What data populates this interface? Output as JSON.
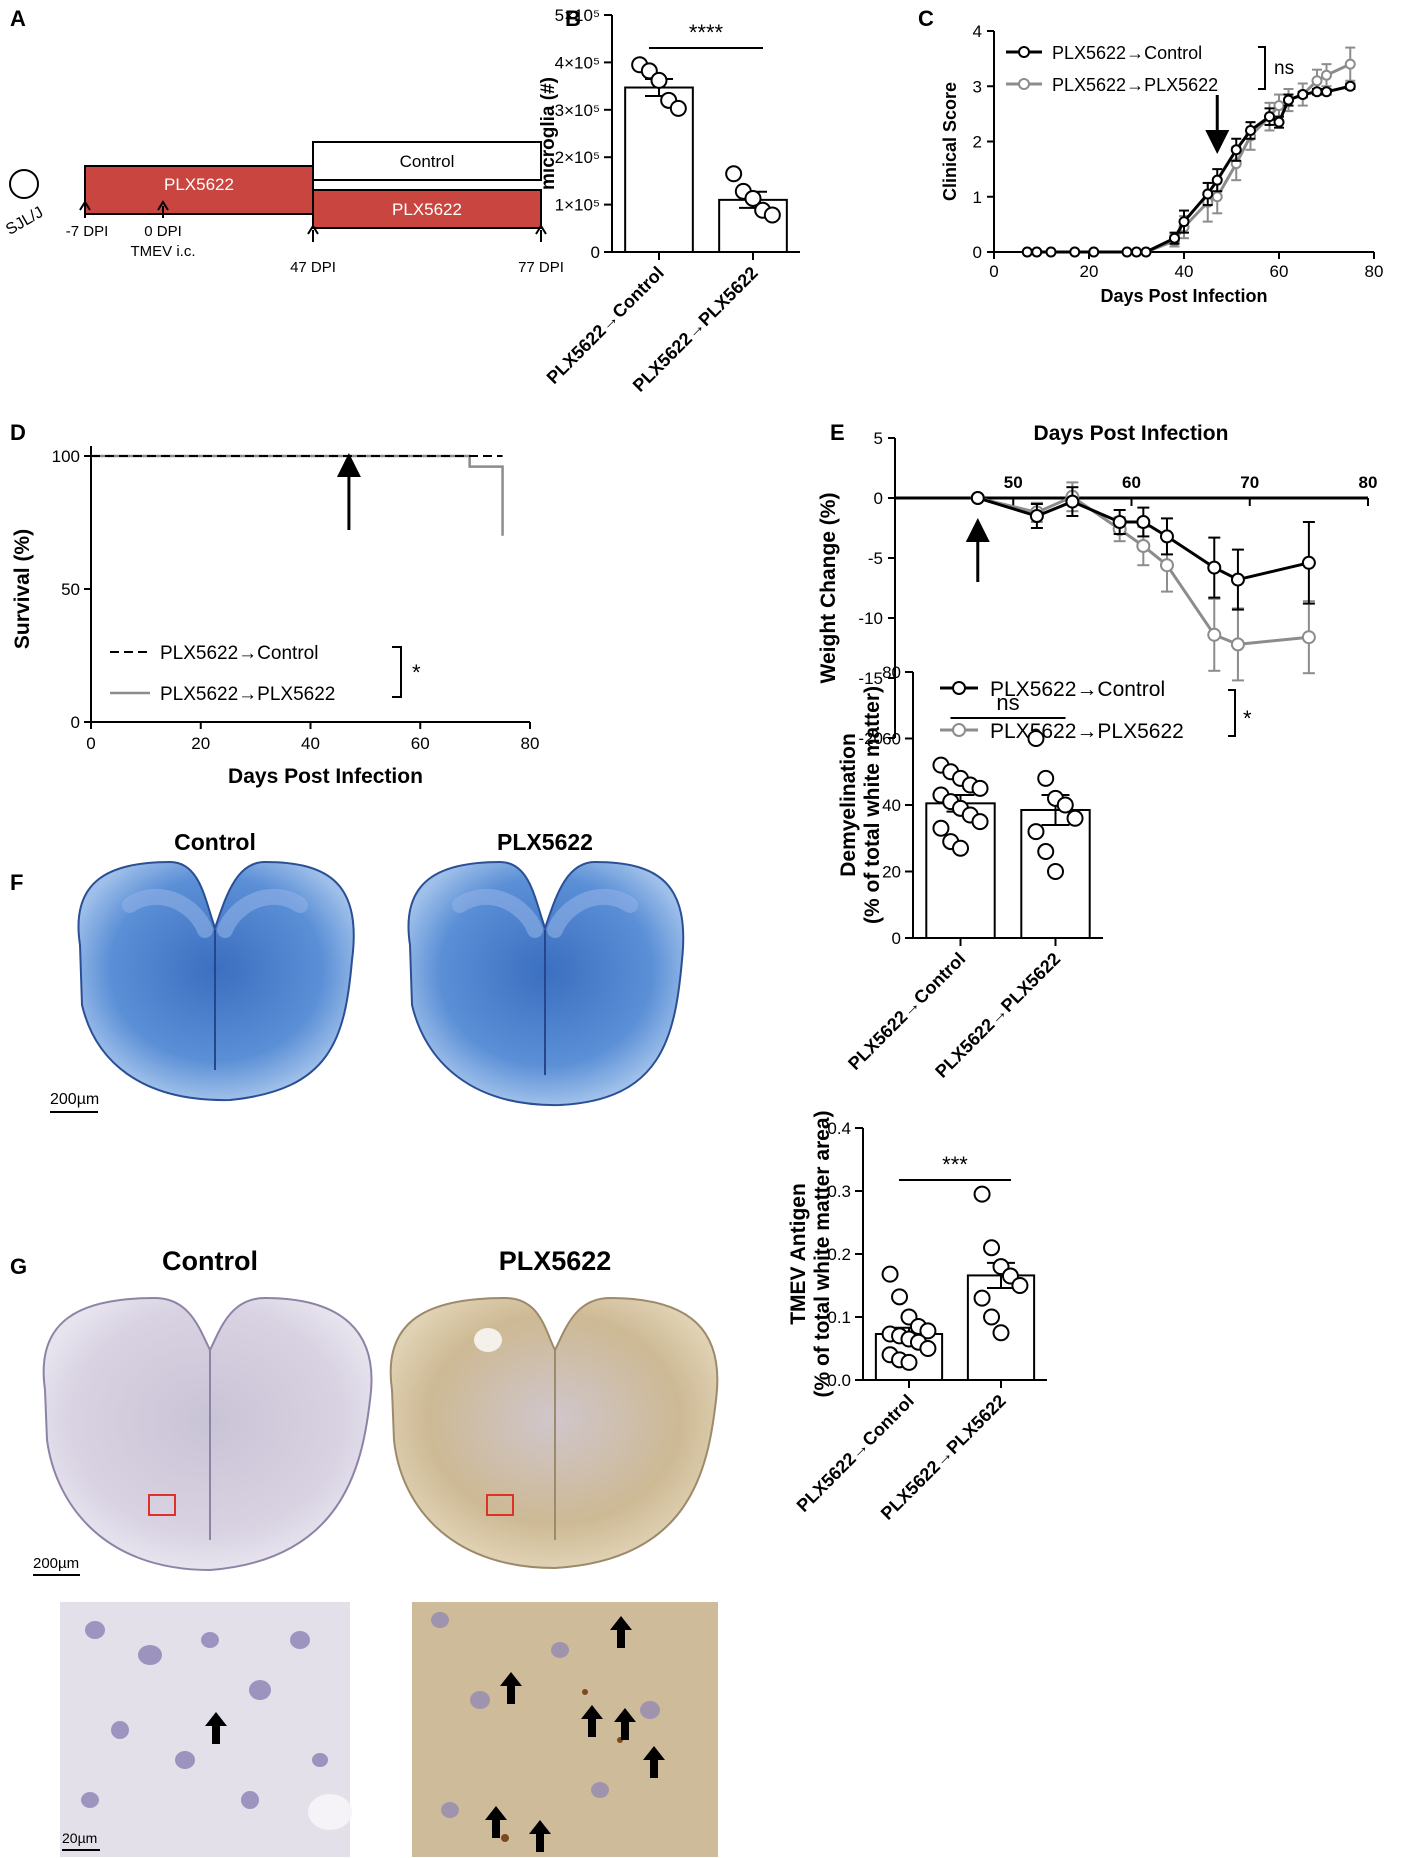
{
  "panels": {
    "a": {
      "letter": "A",
      "strain": "SJL/J",
      "bar_plx": "PLX5622",
      "bar_control": "Control",
      "bar_plx2": "PLX5622",
      "time_labels": [
        "-7 DPI",
        "0 DPI",
        "TMEV i.c.",
        "47 DPI",
        "77 DPI"
      ],
      "bar_color": "#c9453f"
    },
    "b": {
      "letter": "B"
    },
    "c": {
      "letter": "C"
    },
    "d": {
      "letter": "D"
    },
    "e": {
      "letter": "E"
    },
    "f": {
      "letter": "F",
      "img_labels": [
        "Control",
        "PLX5622"
      ],
      "scale_bar": "200µm"
    },
    "g": {
      "letter": "G",
      "img_labels": [
        "Control",
        "PLX5622"
      ],
      "scale_bar": "200µm",
      "scale_bar_zoom": "20µm"
    }
  },
  "colors": {
    "control": "#000000",
    "plx": "#8c8c8c",
    "stain_blue": "#3a6fc4",
    "stain_brown": "#b89a6a",
    "roi_box": "#e0302a"
  },
  "chart_data": [
    {
      "id": "b",
      "type": "bar",
      "ylabel": "microglia (#)",
      "ylim": [
        0,
        500000
      ],
      "yticks": [
        0,
        100000,
        200000,
        300000,
        400000,
        500000
      ],
      "ytick_labels": [
        "0",
        "1×10⁵",
        "2×10⁵",
        "3×10⁵",
        "4×10⁵",
        "5×10⁵"
      ],
      "categories": [
        "PLX5622→Control",
        "PLX5622→PLX5622"
      ],
      "values": [
        347000,
        110000
      ],
      "sem": [
        18000,
        17000
      ],
      "points": [
        [
          395000,
          382000,
          362000,
          320000,
          303000
        ],
        [
          165000,
          128000,
          113000,
          88000,
          78000
        ]
      ],
      "significance": "****"
    },
    {
      "id": "c",
      "type": "line",
      "xlabel": "Days Post Infection",
      "ylabel": "Clinical Score",
      "xlim": [
        0,
        80
      ],
      "ylim": [
        0,
        4
      ],
      "xticks": [
        0,
        20,
        40,
        60,
        80
      ],
      "yticks": [
        0,
        1,
        2,
        3,
        4
      ],
      "significance": "ns",
      "series": [
        {
          "name": "PLX5622→Control",
          "x": [
            7,
            9,
            12,
            17,
            21,
            28,
            30,
            32,
            38,
            40,
            45,
            47,
            51,
            54,
            58,
            60,
            62,
            65,
            68,
            70,
            75
          ],
          "y": [
            0,
            0,
            0,
            0,
            0,
            0,
            0,
            0,
            0.25,
            0.55,
            1.05,
            1.3,
            1.85,
            2.2,
            2.45,
            2.35,
            2.75,
            2.85,
            2.9,
            2.9,
            3.0
          ],
          "err": [
            0,
            0,
            0,
            0,
            0,
            0,
            0,
            0,
            0.1,
            0.2,
            0.2,
            0.2,
            0.2,
            0.15,
            0.15,
            0.1,
            0.1,
            0.05,
            0.05,
            0.05,
            0.05
          ]
        },
        {
          "name": "PLX5622→PLX5622",
          "x": [
            7,
            9,
            12,
            17,
            21,
            28,
            30,
            32,
            38,
            40,
            45,
            47,
            51,
            54,
            58,
            60,
            62,
            65,
            68,
            70,
            75
          ],
          "y": [
            0,
            0,
            0,
            0,
            0,
            0,
            0,
            0,
            0.2,
            0.45,
            0.9,
            1.0,
            1.6,
            2.1,
            2.45,
            2.65,
            2.75,
            2.85,
            3.1,
            3.2,
            3.4
          ],
          "err": [
            0,
            0,
            0,
            0,
            0,
            0,
            0,
            0,
            0.1,
            0.2,
            0.35,
            0.3,
            0.3,
            0.25,
            0.25,
            0.2,
            0.2,
            0.2,
            0.2,
            0.2,
            0.3
          ]
        }
      ]
    },
    {
      "id": "d",
      "type": "line",
      "xlabel": "Days Post Infection",
      "ylabel": "Survival (%)",
      "xlim": [
        0,
        80
      ],
      "ylim": [
        0,
        100
      ],
      "xticks": [
        0,
        20,
        40,
        60,
        80
      ],
      "yticks": [
        0,
        50,
        100
      ],
      "significance": "*",
      "series": [
        {
          "name": "PLX5622→Control",
          "x": [
            0,
            75
          ],
          "y": [
            100,
            100
          ]
        },
        {
          "name": "PLX5622→PLX5622",
          "x": [
            0,
            69,
            69,
            75,
            75
          ],
          "y": [
            100,
            100,
            96,
            96,
            70
          ]
        }
      ]
    },
    {
      "id": "e",
      "type": "line",
      "xlabel": "Days Post Infection",
      "ylabel": "Weight Change (%)",
      "xlim": [
        47,
        80
      ],
      "ylim": [
        -20,
        5
      ],
      "xticks": [
        50,
        60,
        70,
        80
      ],
      "yticks": [
        5,
        0,
        -5,
        -10,
        -15,
        -20
      ],
      "significance": "*",
      "series": [
        {
          "name": "PLX5622→Control",
          "x": [
            47,
            52,
            55,
            59,
            61,
            63,
            67,
            69,
            75
          ],
          "y": [
            0,
            -1.5,
            -0.3,
            -2.0,
            -2.0,
            -3.2,
            -5.8,
            -6.8,
            -5.4
          ],
          "err": [
            0,
            1.0,
            1.2,
            1.0,
            1.2,
            1.5,
            2.5,
            2.5,
            3.4
          ]
        },
        {
          "name": "PLX5622→PLX5622",
          "x": [
            47,
            52,
            55,
            59,
            61,
            63,
            67,
            69,
            75
          ],
          "y": [
            0,
            -1.2,
            0.1,
            -2.6,
            -4.0,
            -5.6,
            -11.4,
            -12.2,
            -11.6
          ],
          "err": [
            0,
            0.8,
            1.2,
            1.0,
            1.6,
            2.2,
            3.0,
            3.0,
            3.0
          ]
        }
      ]
    },
    {
      "id": "f",
      "type": "bar",
      "ylabel": "Demyelination",
      "ylabel2": "(% of total white matter)",
      "ylim": [
        0,
        80
      ],
      "yticks": [
        0,
        20,
        40,
        60,
        80
      ],
      "categories": [
        "PLX5622→Control",
        "PLX5622→PLX5622"
      ],
      "values": [
        40.5,
        38.5
      ],
      "sem": [
        2.5,
        4.5
      ],
      "points": [
        [
          52,
          50,
          48,
          46,
          45,
          43,
          41,
          39,
          37,
          35,
          33,
          29,
          27
        ],
        [
          60,
          48,
          42,
          40,
          36,
          32,
          26,
          20
        ]
      ],
      "significance": "ns"
    },
    {
      "id": "g",
      "type": "bar",
      "ylabel": "TMEV Antigen",
      "ylabel2": "(% of total white matter area)",
      "ylim": [
        0,
        0.4
      ],
      "yticks": [
        0.0,
        0.1,
        0.2,
        0.3,
        0.4
      ],
      "ytick_labels": [
        "0.0",
        "0.1",
        "0.2",
        "0.3",
        "0.4"
      ],
      "categories": [
        "PLX5622→Control",
        "PLX5622→PLX5622"
      ],
      "values": [
        0.073,
        0.166
      ],
      "sem": [
        0.01,
        0.02
      ],
      "points": [
        [
          0.168,
          0.132,
          0.1,
          0.085,
          0.078,
          0.073,
          0.07,
          0.065,
          0.06,
          0.05,
          0.04,
          0.032,
          0.028
        ],
        [
          0.295,
          0.21,
          0.18,
          0.165,
          0.15,
          0.13,
          0.1,
          0.075
        ]
      ],
      "significance": "***"
    }
  ]
}
